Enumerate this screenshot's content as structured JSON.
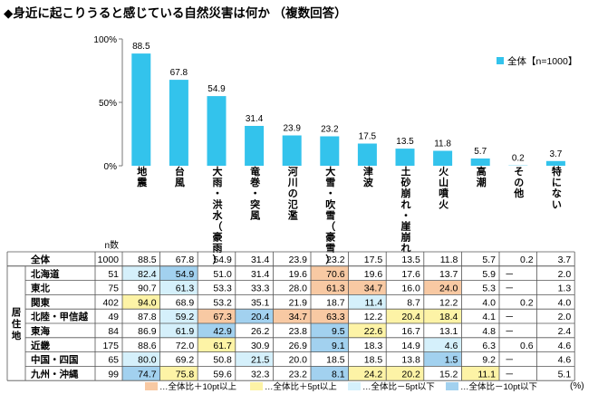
{
  "title": "◆身近に起こりうると感じている自然災害は何か （複数回答）",
  "legend_main": "全体【n=1000】",
  "n_header": "n数",
  "region_group_label": "居住地",
  "unit_label": "(%)",
  "y_ticks": [
    "100%",
    "50%",
    "0%"
  ],
  "colors": {
    "bar": "#33c3ec",
    "plus10": "#f8c9a3",
    "plus5": "#fdf3a6",
    "minus5": "#d5f0fb",
    "minus10": "#a2d1ef"
  },
  "highlight_legend": [
    {
      "label": "全体比＋10pt以上",
      "key": "plus10"
    },
    {
      "label": "全体比＋5pt以上",
      "key": "plus5"
    },
    {
      "label": "全体比－5pt以下",
      "key": "minus5"
    },
    {
      "label": "全体比－10pt以下",
      "key": "minus10"
    }
  ],
  "chart_data": {
    "type": "bar",
    "categories": [
      "地震",
      "台風",
      "大雨・洪水（豪雨）",
      "竜巻・突風",
      "河川の氾濫",
      "大雪・吹雪（豪雪）",
      "津波",
      "土砂崩れ・崖崩れ",
      "火山噴火",
      "高潮",
      "その他",
      "特にない"
    ],
    "category_lines": [
      [
        "地",
        "震"
      ],
      [
        "台",
        "風"
      ],
      [
        "大",
        "雨",
        "・",
        "洪",
        "水",
        "（",
        "豪",
        "雨",
        "）"
      ],
      [
        "竜",
        "巻",
        "・",
        "突",
        "風"
      ],
      [
        "河",
        "川",
        "の",
        "氾",
        "濫"
      ],
      [
        "大",
        "雪",
        "・",
        "吹",
        "雪",
        "（",
        "豪",
        "雪",
        "）"
      ],
      [
        "津",
        "波"
      ],
      [
        "土",
        "砂",
        "崩",
        "れ",
        "・",
        "崖",
        "崩",
        "れ"
      ],
      [
        "火",
        "山",
        "噴",
        "火"
      ],
      [
        "高",
        "潮"
      ],
      [
        "そ",
        "の",
        "他"
      ],
      [
        "特",
        "に",
        "な",
        "い"
      ]
    ],
    "series": [
      {
        "name": "全体【n=1000】",
        "values": [
          88.5,
          67.8,
          54.9,
          31.4,
          23.9,
          23.2,
          17.5,
          13.5,
          11.8,
          5.7,
          0.2,
          3.7
        ]
      }
    ],
    "ylim": [
      0,
      100
    ],
    "table": [
      {
        "label": "全体",
        "n": "1000",
        "values": [
          "88.5",
          "67.8",
          "54.9",
          "31.4",
          "23.9",
          "23.2",
          "17.5",
          "13.5",
          "11.8",
          "5.7",
          "0.2",
          "3.7"
        ],
        "hl": [
          null,
          null,
          null,
          null,
          null,
          null,
          null,
          null,
          null,
          null,
          null,
          null
        ]
      },
      {
        "label": "北海道",
        "n": "51",
        "values": [
          "82.4",
          "54.9",
          "51.0",
          "31.4",
          "19.6",
          "70.6",
          "19.6",
          "17.6",
          "13.7",
          "5.9",
          "－",
          "2.0"
        ],
        "hl": [
          "minus5",
          "minus10",
          null,
          null,
          null,
          "plus10",
          null,
          null,
          null,
          null,
          null,
          null
        ]
      },
      {
        "label": "東北",
        "n": "75",
        "values": [
          "90.7",
          "61.3",
          "53.3",
          "33.3",
          "28.0",
          "61.3",
          "34.7",
          "16.0",
          "24.0",
          "5.3",
          "－",
          "1.3"
        ],
        "hl": [
          null,
          "minus5",
          null,
          null,
          null,
          "plus10",
          "plus10",
          null,
          "plus10",
          null,
          null,
          null
        ]
      },
      {
        "label": "関東",
        "n": "402",
        "values": [
          "94.0",
          "68.9",
          "53.2",
          "35.1",
          "21.9",
          "18.7",
          "11.4",
          "8.7",
          "12.2",
          "4.0",
          "0.2",
          "4.0"
        ],
        "hl": [
          "plus5",
          null,
          null,
          null,
          null,
          null,
          "minus5",
          null,
          null,
          null,
          null,
          null
        ]
      },
      {
        "label": "北陸・甲信越",
        "n": "49",
        "values": [
          "87.8",
          "59.2",
          "67.3",
          "20.4",
          "34.7",
          "63.3",
          "12.2",
          "20.4",
          "18.4",
          "4.1",
          "－",
          "2.0"
        ],
        "hl": [
          null,
          "minus5",
          "plus10",
          "minus10",
          "plus10",
          "plus10",
          null,
          "plus5",
          "plus5",
          null,
          null,
          null
        ]
      },
      {
        "label": "東海",
        "n": "84",
        "values": [
          "86.9",
          "61.9",
          "42.9",
          "26.2",
          "23.8",
          "9.5",
          "22.6",
          "16.7",
          "13.1",
          "4.8",
          "－",
          "2.4"
        ],
        "hl": [
          null,
          "minus5",
          "minus10",
          null,
          null,
          "minus10",
          "plus5",
          null,
          null,
          null,
          null,
          null
        ]
      },
      {
        "label": "近畿",
        "n": "175",
        "values": [
          "88.6",
          "72.0",
          "61.7",
          "30.9",
          "26.9",
          "9.1",
          "18.3",
          "14.9",
          "4.6",
          "6.3",
          "0.6",
          "4.6"
        ],
        "hl": [
          null,
          null,
          "plus5",
          null,
          null,
          "minus10",
          null,
          null,
          "minus5",
          null,
          null,
          null
        ]
      },
      {
        "label": "中国・四国",
        "n": "65",
        "values": [
          "80.0",
          "69.2",
          "50.8",
          "21.5",
          "20.0",
          "18.5",
          "18.5",
          "13.8",
          "1.5",
          "9.2",
          "－",
          "4.6"
        ],
        "hl": [
          "minus5",
          null,
          null,
          "minus5",
          null,
          null,
          null,
          null,
          "minus10",
          null,
          null,
          null
        ]
      },
      {
        "label": "九州・沖縄",
        "n": "99",
        "values": [
          "74.7",
          "75.8",
          "59.6",
          "32.3",
          "23.2",
          "8.1",
          "24.2",
          "20.2",
          "15.2",
          "11.1",
          "－",
          "5.1"
        ],
        "hl": [
          "minus10",
          "plus5",
          null,
          null,
          null,
          "minus10",
          "plus5",
          "plus5",
          null,
          "plus5",
          null,
          null
        ]
      }
    ]
  }
}
